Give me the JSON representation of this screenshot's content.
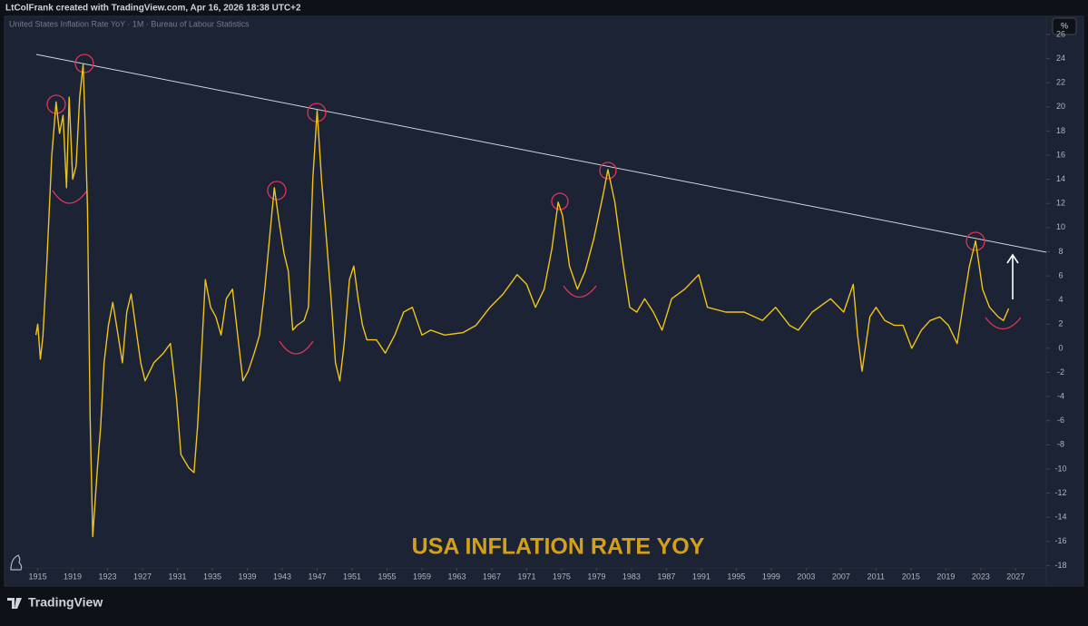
{
  "header": "LtColFrank created with TradingView.com, Apr 16, 2026 18:38 UTC+2",
  "footer": "TradingView",
  "chart_data": {
    "type": "line",
    "title": "United States Inflation Rate YoY · 1M · Bureau of Labour Statistics",
    "annotation": "USA INFLATION RATE YOY",
    "y_unit": "%",
    "series": [
      {
        "name": "United States Inflation Rate YoY",
        "color": "#f0c419"
      }
    ],
    "x": [
      1914.8,
      1915.0,
      1915.3,
      1915.6,
      1916.0,
      1916.6,
      1917.1,
      1917.5,
      1917.9,
      1918.3,
      1918.6,
      1919.0,
      1919.4,
      1919.8,
      1920.2,
      1920.4,
      1920.7,
      1921.0,
      1921.3,
      1921.8,
      1922.2,
      1922.6,
      1923.1,
      1923.6,
      1924.2,
      1924.7,
      1925.2,
      1925.7,
      1926.2,
      1926.8,
      1927.3,
      1928.3,
      1929.4,
      1930.2,
      1930.9,
      1931.4,
      1932.3,
      1932.9,
      1933.3,
      1933.7,
      1934.2,
      1934.8,
      1935.4,
      1936.0,
      1936.6,
      1937.3,
      1937.9,
      1938.5,
      1939.1,
      1939.8,
      1940.4,
      1941.0,
      1941.6,
      1942.1,
      1942.7,
      1943.2,
      1943.7,
      1944.2,
      1944.7,
      1945.5,
      1946.0,
      1946.5,
      1947.0,
      1947.5,
      1948.1,
      1948.6,
      1949.1,
      1949.6,
      1950.1,
      1950.7,
      1951.2,
      1951.7,
      1952.2,
      1952.7,
      1953.8,
      1954.8,
      1955.9,
      1956.9,
      1957.9,
      1959.0,
      1960.0,
      1961.6,
      1963.7,
      1965.2,
      1966.8,
      1968.3,
      1969.9,
      1971.0,
      1972.0,
      1973.0,
      1973.9,
      1974.6,
      1975.1,
      1975.9,
      1976.8,
      1977.7,
      1978.7,
      1979.8,
      1980.3,
      1981.1,
      1982.0,
      1982.8,
      1983.6,
      1984.5,
      1985.5,
      1986.5,
      1987.6,
      1989.1,
      1990.7,
      1991.7,
      1993.8,
      1995.9,
      1998.0,
      1999.5,
      2001.1,
      2002.1,
      2003.7,
      2005.8,
      2007.3,
      2008.4,
      2008.9,
      2009.4,
      2010.3,
      2011.0,
      2012.0,
      2013.1,
      2014.1,
      2015.1,
      2016.2,
      2017.2,
      2018.3,
      2019.3,
      2020.3,
      2021.1,
      2021.7,
      2022.4,
      2023.2,
      2024.0,
      2025.0,
      2025.6,
      2026.2
    ],
    "values": [
      1.1,
      2.0,
      -0.9,
      1.0,
      6.4,
      15.9,
      20.4,
      17.8,
      19.3,
      13.3,
      20.8,
      14.0,
      15.1,
      20.8,
      23.5,
      19.3,
      11.7,
      -5.7,
      -15.6,
      -10.3,
      -6.5,
      -1.2,
      1.9,
      3.8,
      1.1,
      -1.2,
      3.0,
      4.5,
      1.9,
      -1.2,
      -2.7,
      -1.2,
      -0.4,
      0.4,
      -4.2,
      -8.8,
      -9.9,
      -10.3,
      -6.5,
      -1.2,
      5.7,
      3.4,
      2.6,
      1.1,
      4.1,
      4.9,
      1.1,
      -2.7,
      -1.9,
      -0.4,
      1.1,
      4.9,
      9.5,
      13.3,
      10.2,
      7.9,
      6.4,
      1.5,
      1.9,
      2.3,
      3.4,
      14.0,
      19.7,
      14.0,
      8.7,
      4.1,
      -1.2,
      -2.7,
      0.4,
      5.7,
      6.8,
      4.1,
      1.9,
      0.7,
      0.7,
      -0.4,
      1.1,
      3.0,
      3.4,
      1.1,
      1.5,
      1.1,
      1.3,
      1.9,
      3.4,
      4.5,
      6.1,
      5.3,
      3.4,
      4.9,
      8.3,
      12.1,
      11.0,
      6.8,
      4.9,
      6.4,
      9.1,
      12.9,
      14.8,
      12.1,
      7.2,
      3.4,
      3.0,
      4.1,
      3.0,
      1.5,
      4.1,
      4.9,
      6.1,
      3.4,
      3.0,
      3.0,
      2.3,
      3.4,
      1.9,
      1.5,
      3.0,
      4.1,
      3.0,
      5.3,
      1.1,
      -1.9,
      2.6,
      3.4,
      2.3,
      1.9,
      1.9,
      0.0,
      1.5,
      2.3,
      2.6,
      1.9,
      0.4,
      4.1,
      6.8,
      8.9,
      4.9,
      3.4,
      2.6,
      2.3,
      3.3
    ],
    "xlim": [
      1911.2,
      2030.5
    ],
    "ylim": [
      -19.7,
      27.5
    ],
    "xticks": [
      1915,
      1919,
      1923,
      1927,
      1931,
      1935,
      1939,
      1943,
      1947,
      1951,
      1955,
      1959,
      1963,
      1967,
      1971,
      1975,
      1979,
      1983,
      1987,
      1991,
      1995,
      1999,
      2003,
      2007,
      2011,
      2015,
      2019,
      2023,
      2027
    ],
    "yticks": [
      -18,
      -16,
      -14,
      -12,
      -10,
      -8,
      -6,
      -4,
      -2,
      0,
      2,
      4,
      6,
      8,
      10,
      12,
      14,
      16,
      18,
      20,
      22,
      24,
      26
    ]
  }
}
